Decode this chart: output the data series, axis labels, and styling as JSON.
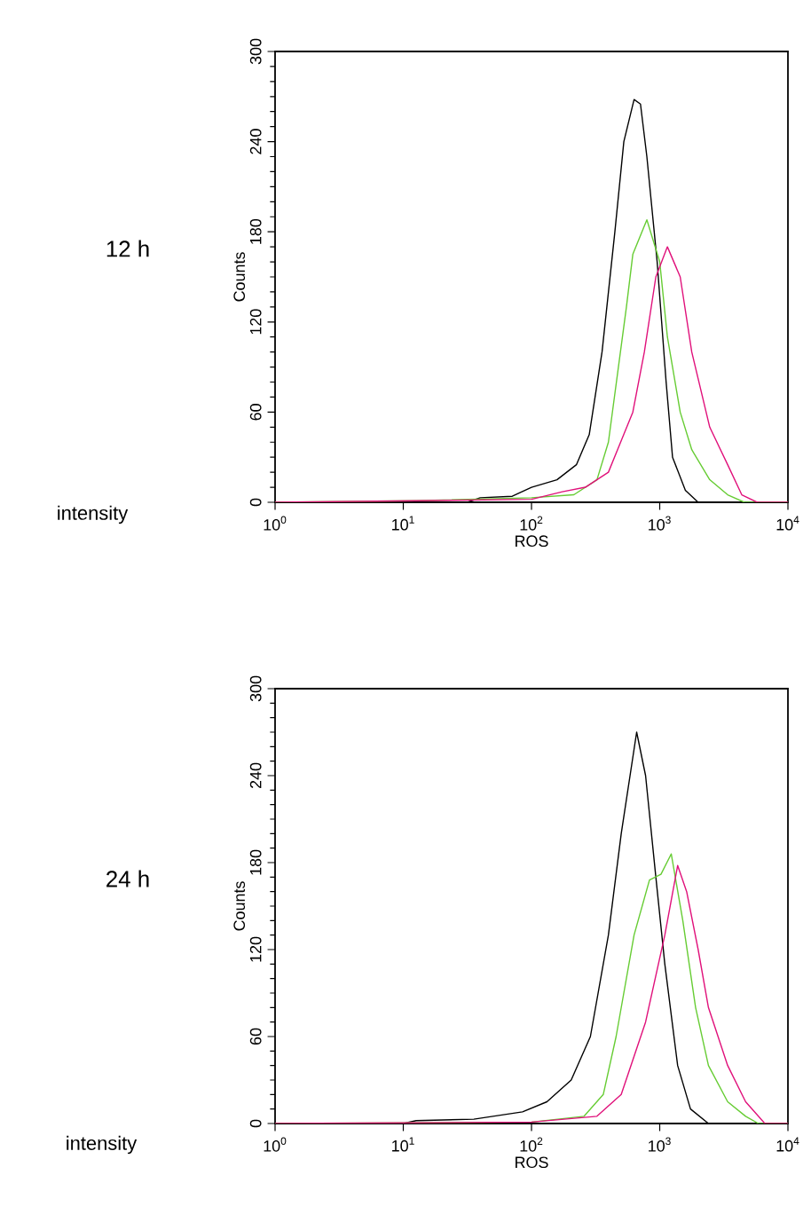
{
  "chart_data": [
    {
      "type": "line",
      "title": "12 h",
      "xlabel": "ROS",
      "ylabel": "Counts",
      "annotations": [
        "intensity"
      ],
      "log": "x",
      "xlim": [
        1,
        10000
      ],
      "ylim": [
        0,
        300
      ],
      "xticks": [
        {
          "value": 1,
          "label": "10$^{0}$"
        },
        {
          "value": 10,
          "label": "10$^{1}$"
        },
        {
          "value": 100,
          "label": "10$^{2}$"
        },
        {
          "value": 1000,
          "label": "10$^{3}$"
        },
        {
          "value": 10000,
          "label": "10$^{4}$"
        }
      ],
      "yticks": [
        0,
        60,
        120,
        180,
        240,
        300
      ],
      "series": [
        {
          "color": "#000000",
          "x": [
            1,
            31.6,
            39.8,
            70.8,
            100,
            158,
            224,
            282,
            355,
            447,
            525,
            631,
            708,
            794,
            955,
            1122,
            1259,
            1585,
            1995,
            10000
          ],
          "values": [
            0,
            0,
            3,
            4,
            10,
            15,
            25,
            45,
            100,
            180,
            240,
            268,
            265,
            230,
            160,
            80,
            30,
            8,
            0,
            0
          ]
        },
        {
          "color": "#66cc33",
          "x": [
            1,
            12.6,
            100,
            214,
            324,
            398,
            550,
            617,
            794,
            1000,
            1148,
            1445,
            1778,
            2455,
            3388,
            4571,
            10000
          ],
          "values": [
            0,
            1,
            3,
            5,
            15,
            40,
            130,
            165,
            188,
            160,
            110,
            60,
            35,
            15,
            5,
            0,
            0
          ]
        },
        {
          "color": "#e0107a",
          "x": [
            1,
            12.6,
            100,
            174,
            263,
            398,
            617,
            759,
            933,
            1148,
            1445,
            1778,
            2455,
            3388,
            4365,
            5754,
            10000
          ],
          "values": [
            0,
            1,
            2,
            7,
            10,
            20,
            60,
            100,
            150,
            170,
            150,
            100,
            50,
            25,
            5,
            0,
            0
          ]
        }
      ]
    },
    {
      "type": "line",
      "title": "24 h",
      "xlabel": "ROS",
      "ylabel": "Counts",
      "annotations": [
        "intensity"
      ],
      "log": "x",
      "xlim": [
        1,
        10000
      ],
      "ylim": [
        0,
        300
      ],
      "xticks": [
        {
          "value": 1,
          "label": "10$^{0}$"
        },
        {
          "value": 10,
          "label": "10$^{1}$"
        },
        {
          "value": 100,
          "label": "10$^{2}$"
        },
        {
          "value": 1000,
          "label": "10$^{3}$"
        },
        {
          "value": 10000,
          "label": "10$^{4}$"
        }
      ],
      "yticks": [
        0,
        60,
        120,
        180,
        240,
        300
      ],
      "series": [
        {
          "color": "#000000",
          "x": [
            1,
            10,
            12.6,
            35.5,
            85.1,
            132,
            204,
            288,
            398,
            501,
            661,
            776,
            933,
            1096,
            1380,
            1738,
            2399,
            10000
          ],
          "values": [
            0,
            0,
            2,
            3,
            8,
            15,
            30,
            60,
            130,
            200,
            270,
            240,
            170,
            110,
            40,
            10,
            0,
            0
          ]
        },
        {
          "color": "#66cc33",
          "x": [
            1,
            100,
            257,
            363,
            457,
            631,
            832,
            1023,
            1230,
            1514,
            1905,
            2399,
            3388,
            4677,
            5888,
            10000
          ],
          "values": [
            0,
            1,
            5,
            20,
            60,
            130,
            168,
            172,
            186,
            140,
            80,
            40,
            15,
            5,
            0,
            0
          ]
        },
        {
          "color": "#e0107a",
          "x": [
            1,
            100,
            324,
            501,
            776,
            1096,
            1380,
            1622,
            1995,
            2399,
            3388,
            4677,
            6607,
            10000
          ],
          "values": [
            0,
            1,
            5,
            20,
            70,
            130,
            178,
            160,
            120,
            80,
            40,
            15,
            0,
            0
          ]
        }
      ]
    }
  ]
}
